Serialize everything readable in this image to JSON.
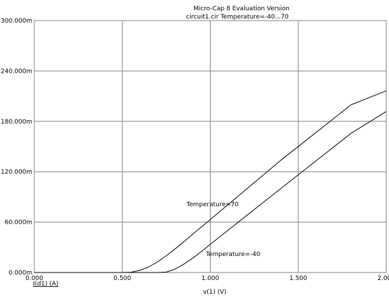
{
  "window": {
    "title_line1": "Micro-Cap 8 Evaluation Version",
    "title_line2": "circuit1.cir Temperature=-40...70"
  },
  "colors": {
    "background": "#ffffff",
    "grid": "#808080",
    "trace": "#000000",
    "text": "#000000"
  },
  "chart_data": {
    "type": "line",
    "title": "Micro-Cap 8 Evaluation Version",
    "subtitle": "circuit1.cir Temperature=-40...70",
    "xlabel": "v(1) (V)",
    "ylabel": "I(d1) (A)",
    "xlim": [
      0.0,
      2.0
    ],
    "ylim": [
      0.0,
      0.3
    ],
    "x_ticks": [
      0.0,
      0.5,
      1.0,
      1.5,
      2.0
    ],
    "x_tick_labels": [
      "0.000",
      "0.500",
      "1.000",
      "1.500",
      "2.000"
    ],
    "y_ticks": [
      0.0,
      0.06,
      0.12,
      0.18,
      0.24,
      0.3
    ],
    "y_tick_labels": [
      "0.000m",
      "60.000m",
      "120.000m",
      "180.000m",
      "240.000m",
      "300.000m"
    ],
    "grid": true,
    "series": [
      {
        "name": "Temperature=70",
        "x": [
          0.0,
          0.5,
          0.55,
          0.6,
          0.65,
          0.7,
          0.75,
          0.8,
          0.85,
          0.9,
          1.0,
          1.2,
          1.4,
          1.6,
          1.8,
          2.0
        ],
        "values": [
          0.0,
          0.0,
          0.0003,
          0.0025,
          0.0065,
          0.0125,
          0.02,
          0.028,
          0.0365,
          0.0455,
          0.063,
          0.0983,
          0.1335,
          0.1666,
          0.1998,
          0.2164
        ]
      },
      {
        "name": "Temperature=-40",
        "x": [
          0.0,
          0.7,
          0.75,
          0.8,
          0.85,
          0.9,
          0.95,
          1.0,
          1.1,
          1.2,
          1.4,
          1.6,
          1.8,
          2.0
        ],
        "values": [
          0.0,
          0.0,
          0.0005,
          0.004,
          0.01,
          0.017,
          0.025,
          0.0335,
          0.0502,
          0.0668,
          0.0998,
          0.1328,
          0.1658,
          0.1918
        ]
      }
    ],
    "annotations": [
      {
        "text": "Temperature=70",
        "x": 0.865,
        "y": 0.079
      },
      {
        "text": "Temperature=-40",
        "x": 0.975,
        "y": 0.0195
      }
    ]
  }
}
